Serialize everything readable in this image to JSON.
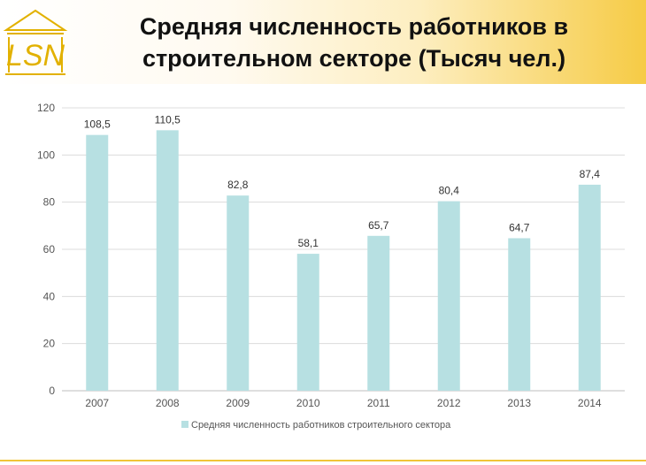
{
  "header": {
    "title_line1": "Средняя численность работников в",
    "title_line2": "строительном секторе (Тысяч чел.)",
    "logo_text": "LSN",
    "accent_color": "#f6cb45"
  },
  "chart_data": {
    "type": "bar",
    "categories": [
      "2007",
      "2008",
      "2009",
      "2010",
      "2011",
      "2012",
      "2013",
      "2014"
    ],
    "series": [
      {
        "name": "Средняя численность работников строительного сектора",
        "values": [
          108.5,
          110.5,
          82.8,
          58.1,
          65.7,
          80.4,
          64.7,
          87.4
        ],
        "labels": [
          "108,5",
          "110,5",
          "82,8",
          "58,1",
          "65,7",
          "80,4",
          "64,7",
          "87,4"
        ],
        "color": "#b7e0e2"
      }
    ],
    "yticks": [
      0,
      20,
      40,
      60,
      80,
      100,
      120
    ],
    "ylim": [
      0,
      120
    ],
    "grid": true,
    "legend": "bottom-center"
  }
}
